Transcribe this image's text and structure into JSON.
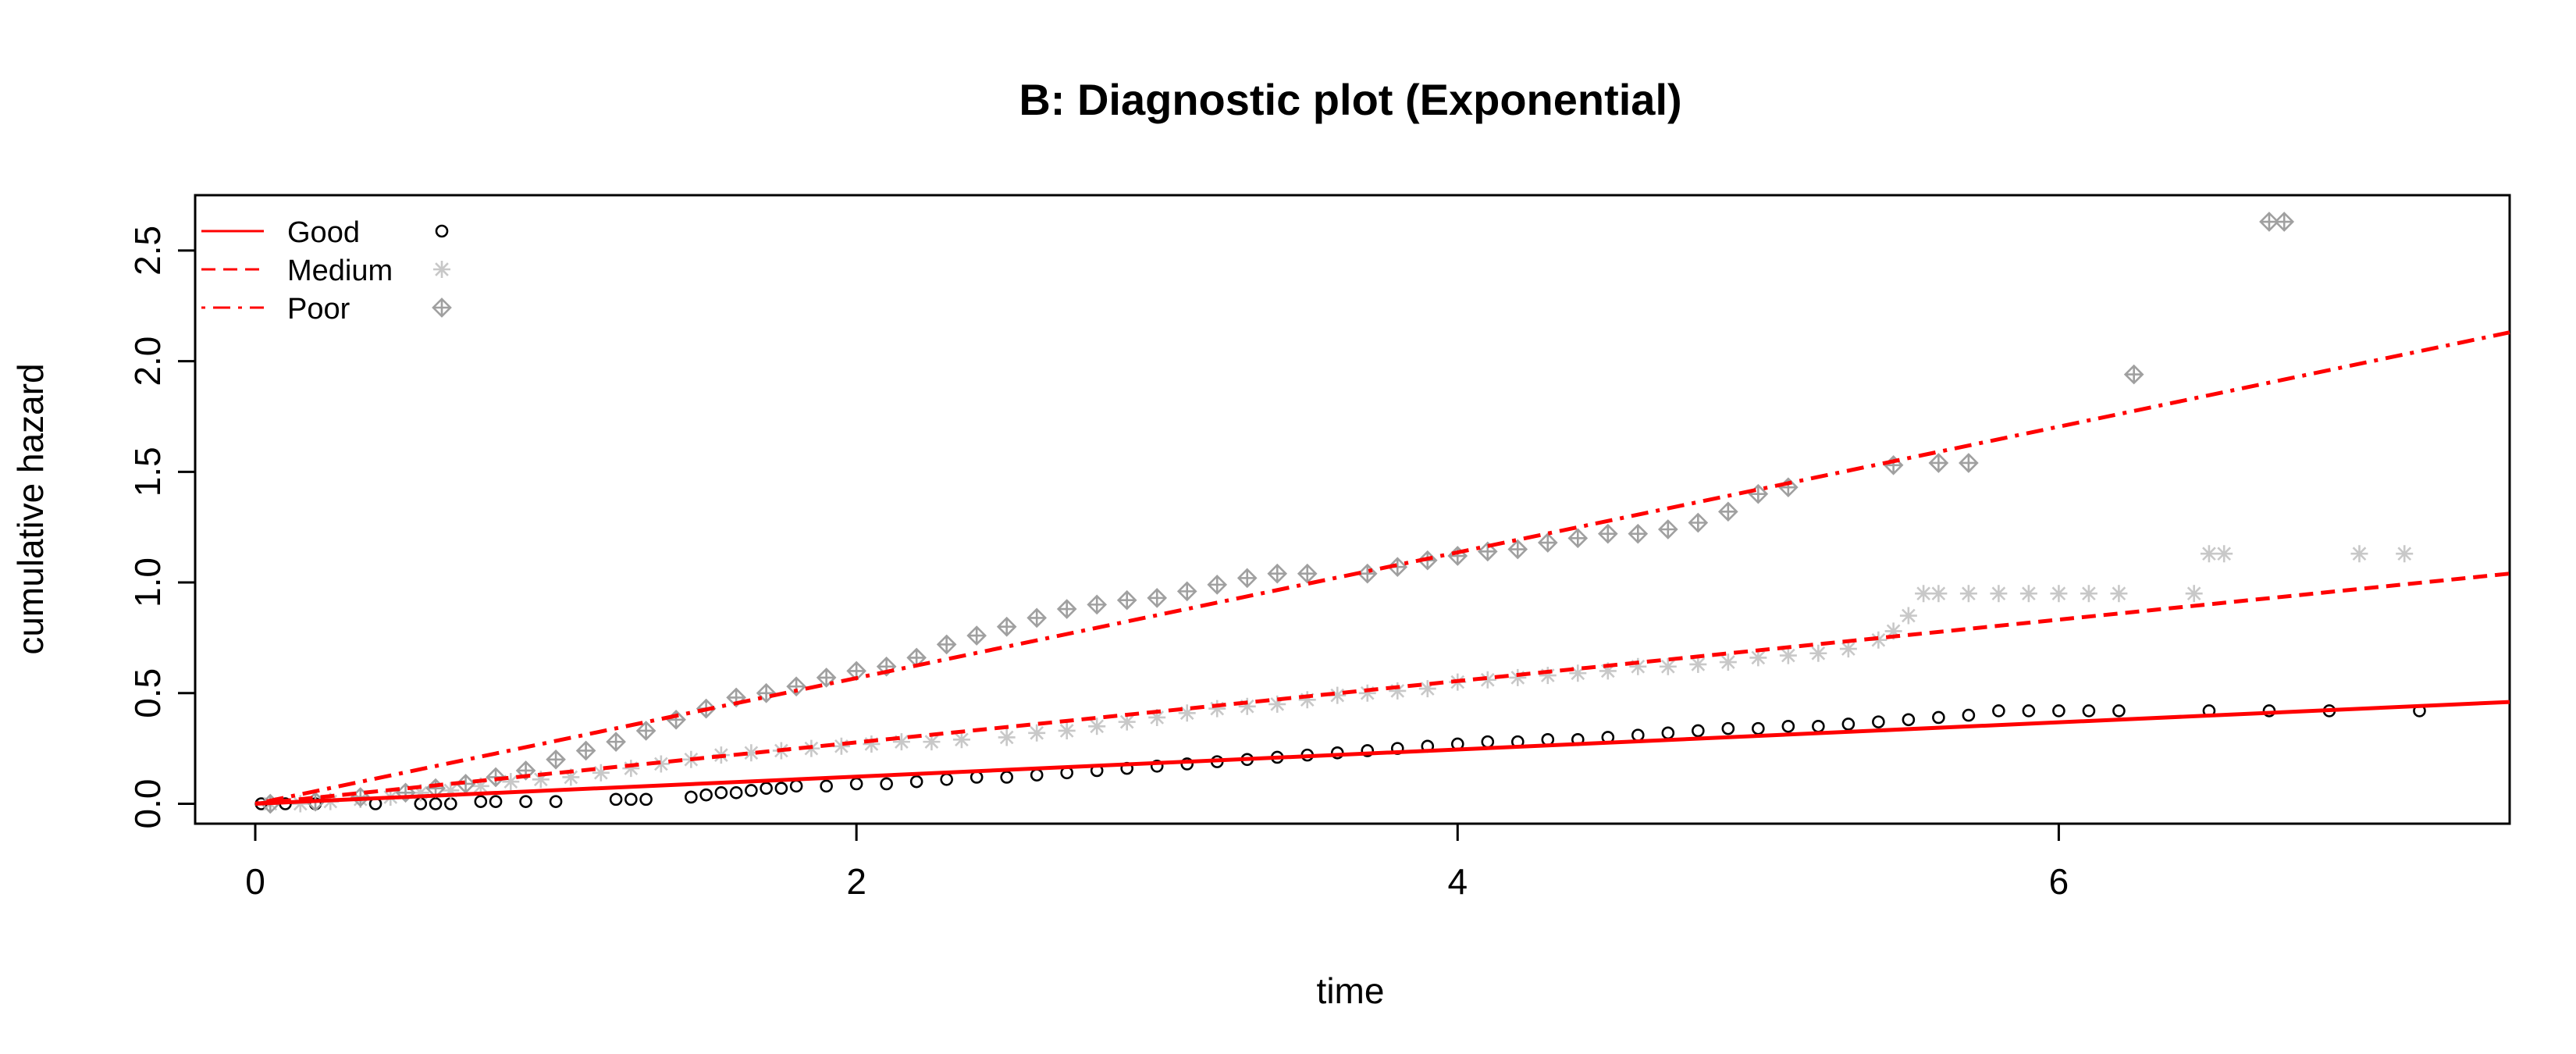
{
  "chart_data": {
    "type": "scatter",
    "title": "B: Diagnostic plot (Exponential)",
    "xlabel": "time",
    "ylabel": "cumulative hazard",
    "xlim": [
      -0.2,
      7.5
    ],
    "ylim": [
      -0.09,
      2.75
    ],
    "x_ticks": [
      0,
      2,
      4,
      6
    ],
    "y_ticks": [
      0.0,
      0.5,
      1.0,
      1.5,
      2.0,
      2.5
    ],
    "x_tick_labels": [
      "0",
      "2",
      "4",
      "6"
    ],
    "y_tick_labels": [
      "0.0",
      "0.5",
      "1.0",
      "1.5",
      "2.0",
      "2.5"
    ],
    "grid": false,
    "legend_position": "top-left",
    "fit_lines": [
      {
        "name": "Good",
        "style": "solid",
        "color": "#ff0000",
        "x": [
          0,
          7.5
        ],
        "y": [
          0,
          0.46
        ]
      },
      {
        "name": "Medium",
        "style": "dashed",
        "color": "#ff0000",
        "x": [
          0,
          7.5
        ],
        "y": [
          0,
          1.04
        ]
      },
      {
        "name": "Poor",
        "style": "dotdash",
        "color": "#ff0000",
        "x": [
          0,
          7.5
        ],
        "y": [
          0,
          2.13
        ]
      }
    ],
    "series": [
      {
        "name": "Good",
        "marker": "circle",
        "color": "#000000",
        "points": [
          [
            0.02,
            0.0
          ],
          [
            0.1,
            0.0
          ],
          [
            0.2,
            0.0
          ],
          [
            0.4,
            0.0
          ],
          [
            0.55,
            0.0
          ],
          [
            0.6,
            0.0
          ],
          [
            0.65,
            0.0
          ],
          [
            0.75,
            0.01
          ],
          [
            0.8,
            0.01
          ],
          [
            0.9,
            0.01
          ],
          [
            1.0,
            0.01
          ],
          [
            1.2,
            0.02
          ],
          [
            1.25,
            0.02
          ],
          [
            1.3,
            0.02
          ],
          [
            1.45,
            0.03
          ],
          [
            1.5,
            0.04
          ],
          [
            1.55,
            0.05
          ],
          [
            1.6,
            0.05
          ],
          [
            1.65,
            0.06
          ],
          [
            1.7,
            0.07
          ],
          [
            1.75,
            0.07
          ],
          [
            1.8,
            0.08
          ],
          [
            1.9,
            0.08
          ],
          [
            2.0,
            0.09
          ],
          [
            2.1,
            0.09
          ],
          [
            2.2,
            0.1
          ],
          [
            2.3,
            0.11
          ],
          [
            2.4,
            0.12
          ],
          [
            2.5,
            0.12
          ],
          [
            2.6,
            0.13
          ],
          [
            2.7,
            0.14
          ],
          [
            2.8,
            0.15
          ],
          [
            2.9,
            0.16
          ],
          [
            3.0,
            0.17
          ],
          [
            3.1,
            0.18
          ],
          [
            3.2,
            0.19
          ],
          [
            3.3,
            0.2
          ],
          [
            3.4,
            0.21
          ],
          [
            3.5,
            0.22
          ],
          [
            3.6,
            0.23
          ],
          [
            3.7,
            0.24
          ],
          [
            3.8,
            0.25
          ],
          [
            3.9,
            0.26
          ],
          [
            4.0,
            0.27
          ],
          [
            4.1,
            0.28
          ],
          [
            4.2,
            0.28
          ],
          [
            4.3,
            0.29
          ],
          [
            4.4,
            0.29
          ],
          [
            4.5,
            0.3
          ],
          [
            4.6,
            0.31
          ],
          [
            4.7,
            0.32
          ],
          [
            4.8,
            0.33
          ],
          [
            4.9,
            0.34
          ],
          [
            5.0,
            0.34
          ],
          [
            5.1,
            0.35
          ],
          [
            5.2,
            0.35
          ],
          [
            5.3,
            0.36
          ],
          [
            5.4,
            0.37
          ],
          [
            5.5,
            0.38
          ],
          [
            5.6,
            0.39
          ],
          [
            5.7,
            0.4
          ],
          [
            5.8,
            0.42
          ],
          [
            5.9,
            0.42
          ],
          [
            6.0,
            0.42
          ],
          [
            6.1,
            0.42
          ],
          [
            6.2,
            0.42
          ],
          [
            6.5,
            0.42
          ],
          [
            6.7,
            0.42
          ],
          [
            6.9,
            0.42
          ],
          [
            7.2,
            0.42
          ]
        ]
      },
      {
        "name": "Medium",
        "marker": "asterisk",
        "color": "#c8c8c8",
        "points": [
          [
            0.05,
            0.0
          ],
          [
            0.15,
            0.0
          ],
          [
            0.25,
            0.01
          ],
          [
            0.35,
            0.02
          ],
          [
            0.45,
            0.03
          ],
          [
            0.55,
            0.05
          ],
          [
            0.65,
            0.06
          ],
          [
            0.75,
            0.08
          ],
          [
            0.85,
            0.1
          ],
          [
            0.95,
            0.11
          ],
          [
            1.05,
            0.12
          ],
          [
            1.15,
            0.14
          ],
          [
            1.25,
            0.16
          ],
          [
            1.35,
            0.18
          ],
          [
            1.45,
            0.2
          ],
          [
            1.55,
            0.22
          ],
          [
            1.65,
            0.23
          ],
          [
            1.75,
            0.24
          ],
          [
            1.85,
            0.25
          ],
          [
            1.95,
            0.26
          ],
          [
            2.05,
            0.27
          ],
          [
            2.15,
            0.28
          ],
          [
            2.25,
            0.28
          ],
          [
            2.35,
            0.29
          ],
          [
            2.5,
            0.3
          ],
          [
            2.6,
            0.32
          ],
          [
            2.7,
            0.33
          ],
          [
            2.8,
            0.35
          ],
          [
            2.9,
            0.37
          ],
          [
            3.0,
            0.39
          ],
          [
            3.1,
            0.41
          ],
          [
            3.2,
            0.43
          ],
          [
            3.3,
            0.44
          ],
          [
            3.4,
            0.45
          ],
          [
            3.5,
            0.47
          ],
          [
            3.6,
            0.49
          ],
          [
            3.7,
            0.5
          ],
          [
            3.8,
            0.51
          ],
          [
            3.9,
            0.52
          ],
          [
            4.0,
            0.55
          ],
          [
            4.1,
            0.56
          ],
          [
            4.2,
            0.57
          ],
          [
            4.3,
            0.58
          ],
          [
            4.4,
            0.59
          ],
          [
            4.5,
            0.6
          ],
          [
            4.6,
            0.62
          ],
          [
            4.7,
            0.62
          ],
          [
            4.8,
            0.63
          ],
          [
            4.9,
            0.64
          ],
          [
            5.0,
            0.66
          ],
          [
            5.1,
            0.67
          ],
          [
            5.2,
            0.68
          ],
          [
            5.3,
            0.7
          ],
          [
            5.4,
            0.74
          ],
          [
            5.45,
            0.78
          ],
          [
            5.5,
            0.85
          ],
          [
            5.55,
            0.95
          ],
          [
            5.6,
            0.95
          ],
          [
            5.7,
            0.95
          ],
          [
            5.8,
            0.95
          ],
          [
            5.9,
            0.95
          ],
          [
            6.0,
            0.95
          ],
          [
            6.1,
            0.95
          ],
          [
            6.2,
            0.95
          ],
          [
            6.45,
            0.95
          ],
          [
            6.5,
            1.13
          ],
          [
            6.55,
            1.13
          ],
          [
            7.0,
            1.13
          ],
          [
            7.15,
            1.13
          ]
        ]
      },
      {
        "name": "Poor",
        "marker": "diamond-plus",
        "color": "#a0a0a0",
        "points": [
          [
            0.05,
            0.0
          ],
          [
            0.2,
            0.01
          ],
          [
            0.35,
            0.03
          ],
          [
            0.5,
            0.05
          ],
          [
            0.6,
            0.07
          ],
          [
            0.7,
            0.09
          ],
          [
            0.8,
            0.12
          ],
          [
            0.9,
            0.15
          ],
          [
            1.0,
            0.2
          ],
          [
            1.1,
            0.24
          ],
          [
            1.2,
            0.28
          ],
          [
            1.3,
            0.33
          ],
          [
            1.4,
            0.38
          ],
          [
            1.5,
            0.43
          ],
          [
            1.6,
            0.48
          ],
          [
            1.7,
            0.5
          ],
          [
            1.8,
            0.53
          ],
          [
            1.9,
            0.57
          ],
          [
            2.0,
            0.6
          ],
          [
            2.1,
            0.62
          ],
          [
            2.2,
            0.66
          ],
          [
            2.3,
            0.72
          ],
          [
            2.4,
            0.76
          ],
          [
            2.5,
            0.8
          ],
          [
            2.6,
            0.84
          ],
          [
            2.7,
            0.88
          ],
          [
            2.8,
            0.9
          ],
          [
            2.9,
            0.92
          ],
          [
            3.0,
            0.93
          ],
          [
            3.1,
            0.96
          ],
          [
            3.2,
            0.99
          ],
          [
            3.3,
            1.02
          ],
          [
            3.4,
            1.04
          ],
          [
            3.5,
            1.04
          ],
          [
            3.7,
            1.04
          ],
          [
            3.8,
            1.07
          ],
          [
            3.9,
            1.1
          ],
          [
            4.0,
            1.12
          ],
          [
            4.1,
            1.14
          ],
          [
            4.2,
            1.15
          ],
          [
            4.3,
            1.18
          ],
          [
            4.4,
            1.2
          ],
          [
            4.5,
            1.22
          ],
          [
            4.6,
            1.22
          ],
          [
            4.7,
            1.24
          ],
          [
            4.8,
            1.27
          ],
          [
            4.9,
            1.32
          ],
          [
            5.0,
            1.4
          ],
          [
            5.1,
            1.43
          ],
          [
            5.45,
            1.53
          ],
          [
            5.6,
            1.54
          ],
          [
            5.7,
            1.54
          ],
          [
            6.25,
            1.94
          ],
          [
            6.7,
            2.63
          ],
          [
            6.75,
            2.63
          ]
        ]
      }
    ]
  },
  "legend": {
    "items": [
      {
        "label": "Good",
        "line_style": "solid",
        "marker": "circle"
      },
      {
        "label": "Medium",
        "line_style": "dashed",
        "marker": "asterisk"
      },
      {
        "label": "Poor",
        "line_style": "dotdash",
        "marker": "diamond-plus"
      }
    ]
  },
  "colors": {
    "fit_line": "#ff0000",
    "good_marker": "#000000",
    "medium_marker": "#c8c8c8",
    "poor_marker": "#a0a0a0"
  }
}
